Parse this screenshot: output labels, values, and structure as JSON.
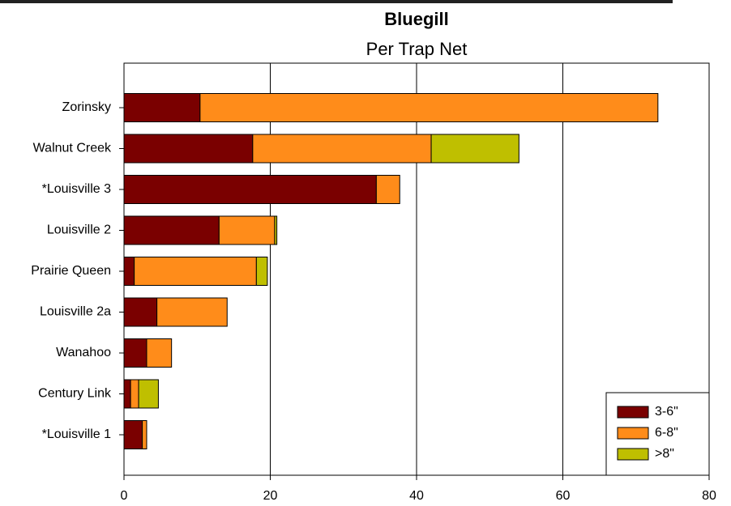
{
  "chart_data": {
    "type": "stacked-barh",
    "title": "Bluegill",
    "subtitle": "Per Trap Net",
    "categories": [
      "Zorinsky",
      "Walnut Creek",
      "*Louisville 3",
      "Louisville 2",
      "Prairie Queen",
      "Louisville 2a",
      "Wanahoo",
      "Century Link",
      "*Louisville 1"
    ],
    "series": [
      {
        "name": "3-6\"",
        "color": "#7a0000",
        "values": [
          10.4,
          17.6,
          34.5,
          13.0,
          1.4,
          4.5,
          3.1,
          0.9,
          2.5
        ]
      },
      {
        "name": "6-8\"",
        "color": "#ff8c1a",
        "values": [
          62.6,
          24.4,
          3.2,
          7.6,
          16.7,
          9.6,
          3.4,
          1.1,
          0.6
        ]
      },
      {
        "name": ">8\"",
        "color": "#bfbf00",
        "values": [
          0,
          12.0,
          0,
          0.3,
          1.5,
          0,
          0,
          2.7,
          0
        ]
      }
    ],
    "xlim": [
      0,
      80
    ],
    "xticks": [
      0,
      20,
      40,
      60,
      80
    ],
    "grid": true,
    "legend": "lower right"
  }
}
